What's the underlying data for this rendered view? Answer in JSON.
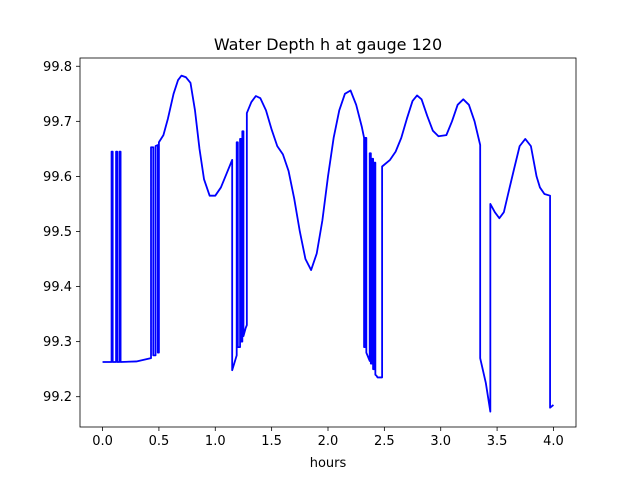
{
  "chart_data": {
    "type": "line",
    "title": "Water Depth h at gauge 120",
    "xlabel": "hours",
    "ylabel": "",
    "xlim": [
      -0.2,
      4.2
    ],
    "ylim": [
      99.145,
      99.815
    ],
    "xticks": [
      0.0,
      0.5,
      1.0,
      1.5,
      2.0,
      2.5,
      3.0,
      3.5,
      4.0
    ],
    "xtick_labels": [
      "0.0",
      "0.5",
      "1.0",
      "1.5",
      "2.0",
      "2.5",
      "3.0",
      "3.5",
      "4.0"
    ],
    "yticks": [
      99.2,
      99.3,
      99.4,
      99.5,
      99.6,
      99.7,
      99.8
    ],
    "ytick_labels": [
      "99.2",
      "99.3",
      "99.4",
      "99.5",
      "99.6",
      "99.7",
      "99.8"
    ],
    "grid": false,
    "series": [
      {
        "color": "#0000ff",
        "points": [
          [
            0.0,
            99.263
          ],
          [
            0.08,
            99.263
          ],
          [
            0.08,
            99.645
          ],
          [
            0.09,
            99.645
          ],
          [
            0.09,
            99.263
          ],
          [
            0.12,
            99.263
          ],
          [
            0.12,
            99.645
          ],
          [
            0.13,
            99.645
          ],
          [
            0.13,
            99.263
          ],
          [
            0.15,
            99.263
          ],
          [
            0.15,
            99.645
          ],
          [
            0.16,
            99.645
          ],
          [
            0.16,
            99.263
          ],
          [
            0.3,
            99.264
          ],
          [
            0.43,
            99.27
          ],
          [
            0.43,
            99.653
          ],
          [
            0.45,
            99.653
          ],
          [
            0.45,
            99.275
          ],
          [
            0.47,
            99.275
          ],
          [
            0.47,
            99.655
          ],
          [
            0.49,
            99.657
          ],
          [
            0.49,
            99.28
          ],
          [
            0.5,
            99.28
          ],
          [
            0.5,
            99.662
          ],
          [
            0.54,
            99.675
          ],
          [
            0.58,
            99.705
          ],
          [
            0.63,
            99.75
          ],
          [
            0.67,
            99.775
          ],
          [
            0.7,
            99.783
          ],
          [
            0.74,
            99.78
          ],
          [
            0.78,
            99.77
          ],
          [
            0.82,
            99.72
          ],
          [
            0.86,
            99.65
          ],
          [
            0.9,
            99.595
          ],
          [
            0.95,
            99.565
          ],
          [
            1.0,
            99.565
          ],
          [
            1.05,
            99.58
          ],
          [
            1.1,
            99.605
          ],
          [
            1.15,
            99.63
          ],
          [
            1.15,
            99.248
          ],
          [
            1.19,
            99.275
          ],
          [
            1.19,
            99.662
          ],
          [
            1.2,
            99.662
          ],
          [
            1.2,
            99.29
          ],
          [
            1.22,
            99.29
          ],
          [
            1.22,
            99.668
          ],
          [
            1.23,
            99.668
          ],
          [
            1.23,
            99.3
          ],
          [
            1.24,
            99.3
          ],
          [
            1.24,
            99.682
          ],
          [
            1.25,
            99.682
          ],
          [
            1.25,
            99.31
          ],
          [
            1.27,
            99.325
          ],
          [
            1.28,
            99.33
          ],
          [
            1.28,
            99.715
          ],
          [
            1.32,
            99.735
          ],
          [
            1.36,
            99.746
          ],
          [
            1.4,
            99.742
          ],
          [
            1.45,
            99.72
          ],
          [
            1.5,
            99.685
          ],
          [
            1.55,
            99.655
          ],
          [
            1.6,
            99.64
          ],
          [
            1.65,
            99.61
          ],
          [
            1.7,
            99.56
          ],
          [
            1.75,
            99.5
          ],
          [
            1.8,
            99.45
          ],
          [
            1.85,
            99.43
          ],
          [
            1.9,
            99.46
          ],
          [
            1.95,
            99.52
          ],
          [
            2.0,
            99.6
          ],
          [
            2.05,
            99.67
          ],
          [
            2.1,
            99.72
          ],
          [
            2.15,
            99.75
          ],
          [
            2.2,
            99.756
          ],
          [
            2.25,
            99.73
          ],
          [
            2.3,
            99.69
          ],
          [
            2.32,
            99.67
          ],
          [
            2.32,
            99.29
          ],
          [
            2.33,
            99.29
          ],
          [
            2.33,
            99.67
          ],
          [
            2.34,
            99.67
          ],
          [
            2.34,
            99.28
          ],
          [
            2.37,
            99.265
          ],
          [
            2.37,
            99.642
          ],
          [
            2.38,
            99.642
          ],
          [
            2.38,
            99.26
          ],
          [
            2.39,
            99.26
          ],
          [
            2.39,
            99.632
          ],
          [
            2.4,
            99.632
          ],
          [
            2.4,
            99.25
          ],
          [
            2.41,
            99.25
          ],
          [
            2.41,
            99.625
          ],
          [
            2.42,
            99.625
          ],
          [
            2.42,
            99.24
          ],
          [
            2.43,
            99.238
          ],
          [
            2.44,
            99.235
          ],
          [
            2.48,
            99.235
          ],
          [
            2.48,
            99.618
          ],
          [
            2.55,
            99.63
          ],
          [
            2.6,
            99.645
          ],
          [
            2.65,
            99.67
          ],
          [
            2.7,
            99.705
          ],
          [
            2.75,
            99.737
          ],
          [
            2.79,
            99.747
          ],
          [
            2.83,
            99.74
          ],
          [
            2.88,
            99.71
          ],
          [
            2.93,
            99.683
          ],
          [
            2.98,
            99.673
          ],
          [
            3.05,
            99.675
          ],
          [
            3.1,
            99.7
          ],
          [
            3.15,
            99.73
          ],
          [
            3.2,
            99.74
          ],
          [
            3.25,
            99.73
          ],
          [
            3.3,
            99.7
          ],
          [
            3.35,
            99.657
          ],
          [
            3.35,
            99.27
          ],
          [
            3.4,
            99.225
          ],
          [
            3.44,
            99.173
          ],
          [
            3.44,
            99.55
          ],
          [
            3.48,
            99.535
          ],
          [
            3.52,
            99.524
          ],
          [
            3.56,
            99.535
          ],
          [
            3.6,
            99.57
          ],
          [
            3.65,
            99.613
          ],
          [
            3.7,
            99.655
          ],
          [
            3.75,
            99.668
          ],
          [
            3.8,
            99.655
          ],
          [
            3.85,
            99.6
          ],
          [
            3.88,
            99.58
          ],
          [
            3.92,
            99.568
          ],
          [
            3.97,
            99.565
          ],
          [
            3.97,
            99.18
          ],
          [
            4.0,
            99.185
          ]
        ]
      }
    ]
  }
}
